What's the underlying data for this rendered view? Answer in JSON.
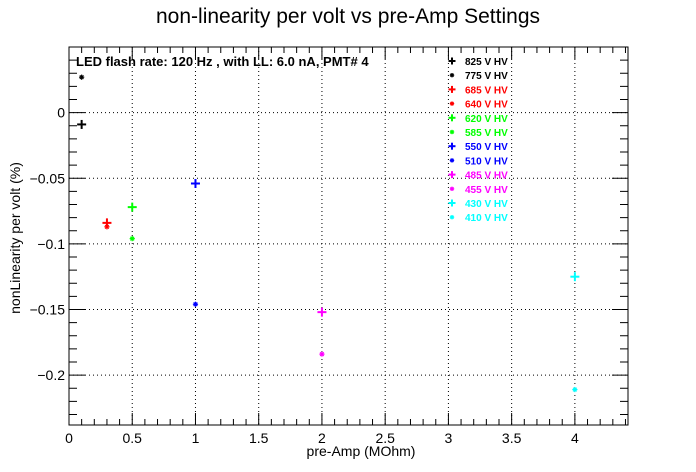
{
  "chart_data": {
    "type": "scatter",
    "title": "non-linearity per volt vs pre-Amp Settings",
    "annotation": "LED flash rate: 120 Hz , with LL: 6.0 nA, PMT# 4",
    "xlabel": "pre-Amp (MOhm)",
    "ylabel": "nonLinearity per volt (%)",
    "xlim": [
      0,
      4.42
    ],
    "ylim": [
      -0.238,
      0.05
    ],
    "xticks": [
      0,
      0.5,
      1,
      1.5,
      2,
      2.5,
      3,
      3.5,
      4
    ],
    "xtick_labels": [
      "0",
      "0.5",
      "1",
      "1.5",
      "2",
      "2.5",
      "3",
      "3.5",
      "4"
    ],
    "yticks": [
      0,
      -0.05,
      -0.1,
      -0.15,
      -0.2
    ],
    "ytick_labels": [
      "0",
      "−0.05",
      "−0.1",
      "−0.15",
      "−0.2"
    ],
    "grid": true,
    "legend_position": "top-right",
    "series": [
      {
        "name": "825 V HV",
        "color": "#000000",
        "marker": "cross",
        "x": [
          0.1
        ],
        "y": [
          -0.009
        ]
      },
      {
        "name": "775 V HV",
        "color": "#000000",
        "marker": "star",
        "x": [
          0.1
        ],
        "y": [
          0.027
        ]
      },
      {
        "name": "685 V HV",
        "color": "#ff0000",
        "marker": "cross",
        "x": [
          0.3
        ],
        "y": [
          -0.084
        ]
      },
      {
        "name": "640 V HV",
        "color": "#ff0000",
        "marker": "star",
        "x": [
          0.3
        ],
        "y": [
          -0.087
        ]
      },
      {
        "name": "620 V HV",
        "color": "#00ff00",
        "marker": "cross",
        "x": [
          0.5
        ],
        "y": [
          -0.072
        ]
      },
      {
        "name": "585 V HV",
        "color": "#00ff00",
        "marker": "star",
        "x": [
          0.5
        ],
        "y": [
          -0.096
        ]
      },
      {
        "name": "550 V HV",
        "color": "#0000ff",
        "marker": "cross",
        "x": [
          1.0
        ],
        "y": [
          -0.054
        ]
      },
      {
        "name": "510 V HV",
        "color": "#0000ff",
        "marker": "star",
        "x": [
          1.0
        ],
        "y": [
          -0.146
        ]
      },
      {
        "name": "485 V HV",
        "color": "#ff00ff",
        "marker": "cross",
        "x": [
          2.0
        ],
        "y": [
          -0.152
        ]
      },
      {
        "name": "455 V HV",
        "color": "#ff00ff",
        "marker": "star",
        "x": [
          2.0
        ],
        "y": [
          -0.184
        ]
      },
      {
        "name": "430 V HV",
        "color": "#00ffff",
        "marker": "cross",
        "x": [
          4.0
        ],
        "y": [
          -0.125
        ]
      },
      {
        "name": "410 V HV",
        "color": "#00ffff",
        "marker": "star",
        "x": [
          4.0
        ],
        "y": [
          -0.211
        ]
      }
    ]
  }
}
